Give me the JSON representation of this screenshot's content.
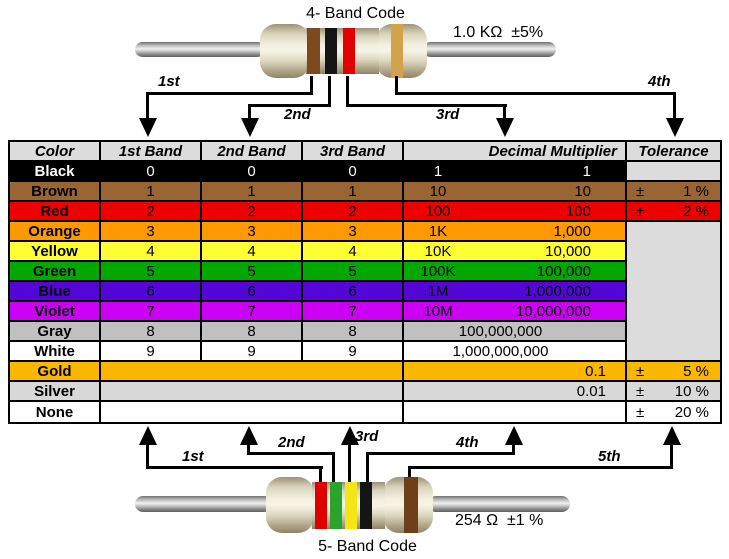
{
  "resistors": {
    "top": {
      "title": "4- Band Code",
      "value": "1.0 KΩ  ±5%",
      "bands": [
        "brown",
        "black",
        "red",
        "gold"
      ],
      "arrows": [
        "1st",
        "2nd",
        "3rd",
        "4th"
      ]
    },
    "bottom": {
      "title": "5- Band Code",
      "value": "254 Ω  ±1 %",
      "bands": [
        "red",
        "green",
        "yellow",
        "black",
        "brown_dark"
      ],
      "arrows": [
        "1st",
        "2nd",
        "3rd",
        "4th",
        "5th"
      ]
    }
  },
  "band_palette": {
    "brown": "#7C4A1E",
    "brown_dark": "#6E3F18",
    "black": "#151515",
    "red": "#E10000",
    "gold": "#D2A24C",
    "green": "#2CA32C",
    "yellow": "#F2E715"
  },
  "table": {
    "headers": [
      "Color",
      "1st Band",
      "2nd Band",
      "3rd Band",
      "Decimal Multiplier",
      "Tolerance"
    ],
    "rows": [
      {
        "color": "Black",
        "bg": "#000000",
        "fg": "#FFFFFF",
        "tol_bg": "#DCDCDC",
        "bands": [
          "0",
          "0",
          "0"
        ],
        "mult_short": "1",
        "mult_full": "1",
        "mult_mode": "split",
        "tol_sign": "",
        "tol_value": "",
        "tol_merge_below": false,
        "bands_merged": false
      },
      {
        "color": "Brown",
        "bg": "#996633",
        "fg": "#000000",
        "tol_bg": "#996633",
        "bands": [
          "1",
          "1",
          "1"
        ],
        "mult_short": "10",
        "mult_full": "10",
        "mult_mode": "split",
        "tol_sign": "±",
        "tol_value": "1 %",
        "tol_merge_below": false,
        "bands_merged": false
      },
      {
        "color": "Red",
        "bg": "#EE0000",
        "fg": "#000000",
        "tol_bg": "#EE0000",
        "bands": [
          "2",
          "2",
          "2"
        ],
        "mult_short": "100",
        "mult_full": "100",
        "mult_mode": "split",
        "tol_sign": "±",
        "tol_value": "2 %",
        "tol_merge_below": false,
        "bands_merged": false
      },
      {
        "color": "Orange",
        "bg": "#FF9900",
        "fg": "#000000",
        "tol_bg": "#DCDCDC",
        "bands": [
          "3",
          "3",
          "3"
        ],
        "mult_short": "1K",
        "mult_full": "1,000",
        "mult_mode": "split",
        "tol_sign": "",
        "tol_value": "",
        "tol_merge_below": true,
        "bands_merged": false
      },
      {
        "color": "Yellow",
        "bg": "#FFFF33",
        "fg": "#000000",
        "tol_bg": "#DCDCDC",
        "bands": [
          "4",
          "4",
          "4"
        ],
        "mult_short": "10K",
        "mult_full": "10,000",
        "mult_mode": "split",
        "tol_sign": "",
        "tol_value": "",
        "tol_merge_below": true,
        "bands_merged": false
      },
      {
        "color": "Green",
        "bg": "#00A800",
        "fg": "#000000",
        "tol_bg": "#DCDCDC",
        "bands": [
          "5",
          "5",
          "5"
        ],
        "mult_short": "100K",
        "mult_full": "100,000",
        "mult_mode": "split",
        "tol_sign": "",
        "tol_value": "",
        "tol_merge_below": true,
        "bands_merged": false
      },
      {
        "color": "Blue",
        "bg": "#5306D6",
        "fg": "#000000",
        "tol_bg": "#DCDCDC",
        "bands": [
          "6",
          "6",
          "6"
        ],
        "mult_short": "1M",
        "mult_full": "1,000,000",
        "mult_mode": "split",
        "tol_sign": "",
        "tol_value": "",
        "tol_merge_below": true,
        "bands_merged": false
      },
      {
        "color": "Violet",
        "bg": "#CC00F5",
        "fg": "#000000",
        "tol_bg": "#DCDCDC",
        "bands": [
          "7",
          "7",
          "7"
        ],
        "mult_short": "10M",
        "mult_full": "10,000,000",
        "mult_mode": "split",
        "tol_sign": "",
        "tol_value": "",
        "tol_merge_below": true,
        "bands_merged": false
      },
      {
        "color": "Gray",
        "bg": "#C0C0C0",
        "fg": "#000000",
        "tol_bg": "#DCDCDC",
        "bands": [
          "8",
          "8",
          "8"
        ],
        "mult_short": "",
        "mult_full": "100,000,000",
        "mult_mode": "center",
        "tol_sign": "",
        "tol_value": "",
        "tol_merge_below": true,
        "bands_merged": false
      },
      {
        "color": "White",
        "bg": "#FFFFFF",
        "fg": "#000000",
        "tol_bg": "#DCDCDC",
        "bands": [
          "9",
          "9",
          "9"
        ],
        "mult_short": "",
        "mult_full": "1,000,000,000",
        "mult_mode": "center",
        "tol_sign": "",
        "tol_value": "",
        "tol_merge_below": false,
        "bands_merged": false
      },
      {
        "color": "Gold",
        "bg": "#F9B700",
        "fg": "#000000",
        "tol_bg": "#F9B700",
        "bands": [],
        "mult_short": "",
        "mult_full": "0.1",
        "mult_mode": "right",
        "tol_sign": "±",
        "tol_value": "5 %",
        "tol_merge_below": false,
        "bands_merged": true
      },
      {
        "color": "Silver",
        "bg": "#D8D8D8",
        "fg": "#000000",
        "tol_bg": "#D8D8D8",
        "bands": [],
        "mult_short": "",
        "mult_full": "0.01",
        "mult_mode": "right",
        "tol_sign": "±",
        "tol_value": "10 %",
        "tol_merge_below": false,
        "bands_merged": true
      },
      {
        "color": "None",
        "bg": "#FFFFFF",
        "fg": "#000000",
        "tol_bg": "#FFFFFF",
        "bands": [],
        "mult_short": "",
        "mult_full": "",
        "mult_mode": "empty",
        "tol_sign": "±",
        "tol_value": "20 %",
        "tol_merge_below": false,
        "bands_merged": true
      }
    ]
  }
}
